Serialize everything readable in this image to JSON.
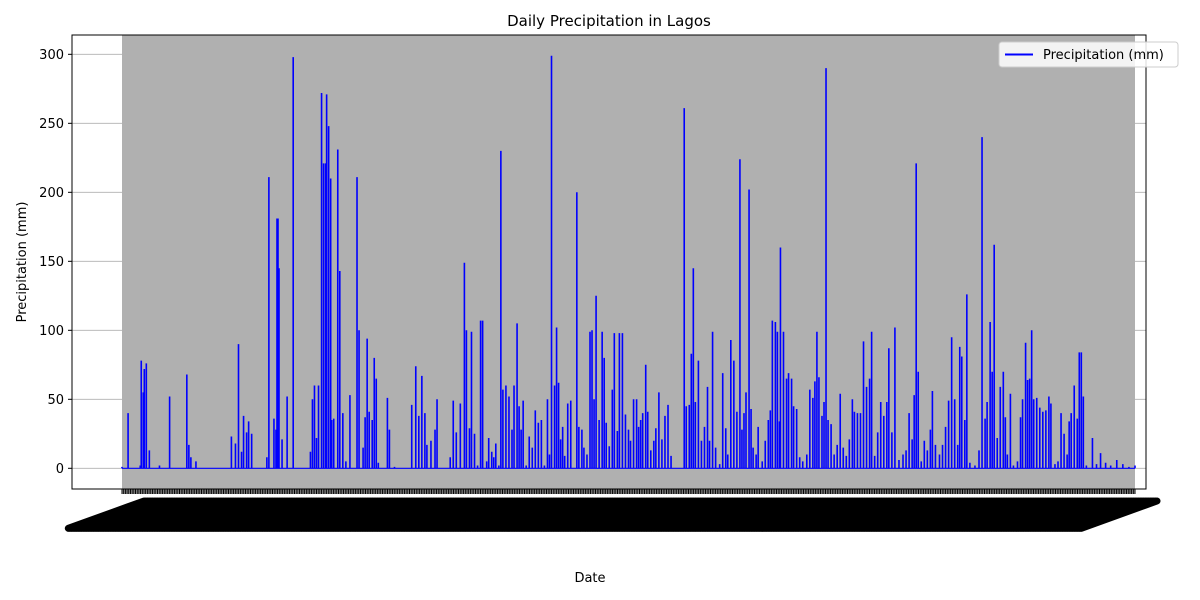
{
  "chart_data": {
    "type": "line",
    "title": "Daily Precipitation in Lagos",
    "xlabel": "Date",
    "ylabel": "Precipitation (mm)",
    "ylim": [
      -15,
      314
    ],
    "yticks": [
      0,
      50,
      100,
      150,
      200,
      250,
      300
    ],
    "grid": "y-only",
    "legend_position": "top-right",
    "x_tick_labels_legible": false,
    "plot_background": "#b0b0b0",
    "series": [
      {
        "name": "Precipitation (mm)",
        "color": "#0000ff",
        "points": [
          [
            0.0,
            1
          ],
          [
            0.006,
            40
          ],
          [
            0.018,
            2
          ],
          [
            0.019,
            78
          ],
          [
            0.021,
            55
          ],
          [
            0.022,
            72
          ],
          [
            0.024,
            76
          ],
          [
            0.027,
            13
          ],
          [
            0.031,
            0
          ],
          [
            0.037,
            2
          ],
          [
            0.047,
            52
          ],
          [
            0.053,
            0
          ],
          [
            0.064,
            40
          ],
          [
            0.064,
            68
          ],
          [
            0.066,
            17
          ],
          [
            0.068,
            8
          ],
          [
            0.071,
            0
          ],
          [
            0.073,
            5
          ],
          [
            0.082,
            0
          ],
          [
            0.108,
            23
          ],
          [
            0.112,
            18
          ],
          [
            0.115,
            90
          ],
          [
            0.118,
            12
          ],
          [
            0.12,
            38
          ],
          [
            0.123,
            26
          ],
          [
            0.125,
            34
          ],
          [
            0.128,
            25
          ],
          [
            0.143,
            8
          ],
          [
            0.145,
            211
          ],
          [
            0.15,
            36
          ],
          [
            0.152,
            28
          ],
          [
            0.153,
            181
          ],
          [
            0.154,
            181
          ],
          [
            0.155,
            145
          ],
          [
            0.158,
            21
          ],
          [
            0.163,
            52
          ],
          [
            0.167,
            0
          ],
          [
            0.169,
            298
          ],
          [
            0.171,
            0
          ],
          [
            0.177,
            0
          ],
          [
            0.186,
            12
          ],
          [
            0.188,
            50
          ],
          [
            0.19,
            60
          ],
          [
            0.192,
            22
          ],
          [
            0.194,
            60
          ],
          [
            0.197,
            272
          ],
          [
            0.199,
            221
          ],
          [
            0.201,
            221
          ],
          [
            0.202,
            271
          ],
          [
            0.204,
            248
          ],
          [
            0.206,
            210
          ],
          [
            0.207,
            35
          ],
          [
            0.209,
            36
          ],
          [
            0.213,
            231
          ],
          [
            0.215,
            143
          ],
          [
            0.218,
            40
          ],
          [
            0.221,
            5
          ],
          [
            0.225,
            53
          ],
          [
            0.23,
            0
          ],
          [
            0.232,
            211
          ],
          [
            0.234,
            100
          ],
          [
            0.238,
            15
          ],
          [
            0.24,
            37
          ],
          [
            0.242,
            94
          ],
          [
            0.244,
            41
          ],
          [
            0.247,
            35
          ],
          [
            0.249,
            80
          ],
          [
            0.251,
            65
          ],
          [
            0.253,
            4
          ],
          [
            0.26,
            0
          ],
          [
            0.262,
            51
          ],
          [
            0.264,
            28
          ],
          [
            0.269,
            1
          ],
          [
            0.276,
            0
          ],
          [
            0.286,
            46
          ],
          [
            0.29,
            74
          ],
          [
            0.293,
            38
          ],
          [
            0.296,
            67
          ],
          [
            0.299,
            40
          ],
          [
            0.301,
            17
          ],
          [
            0.305,
            20
          ],
          [
            0.309,
            28
          ],
          [
            0.311,
            50
          ],
          [
            0.316,
            0
          ],
          [
            0.324,
            8
          ],
          [
            0.327,
            49
          ],
          [
            0.33,
            26
          ],
          [
            0.334,
            47
          ],
          [
            0.338,
            149
          ],
          [
            0.34,
            100
          ],
          [
            0.343,
            29
          ],
          [
            0.345,
            99
          ],
          [
            0.348,
            25
          ],
          [
            0.351,
            2
          ],
          [
            0.354,
            107
          ],
          [
            0.356,
            107
          ],
          [
            0.36,
            5
          ],
          [
            0.362,
            22
          ],
          [
            0.365,
            12
          ],
          [
            0.367,
            8
          ],
          [
            0.369,
            18
          ],
          [
            0.372,
            2
          ],
          [
            0.374,
            230
          ],
          [
            0.376,
            57
          ],
          [
            0.379,
            60
          ],
          [
            0.382,
            52
          ],
          [
            0.385,
            28
          ],
          [
            0.387,
            60
          ],
          [
            0.39,
            105
          ],
          [
            0.392,
            45
          ],
          [
            0.394,
            28
          ],
          [
            0.396,
            49
          ],
          [
            0.399,
            2
          ],
          [
            0.402,
            23
          ],
          [
            0.405,
            15
          ],
          [
            0.408,
            42
          ],
          [
            0.411,
            33
          ],
          [
            0.414,
            35
          ],
          [
            0.417,
            2
          ],
          [
            0.42,
            50
          ],
          [
            0.422,
            10
          ],
          [
            0.424,
            299
          ],
          [
            0.427,
            60
          ],
          [
            0.429,
            102
          ],
          [
            0.431,
            62
          ],
          [
            0.433,
            21
          ],
          [
            0.435,
            30
          ],
          [
            0.437,
            9
          ],
          [
            0.44,
            47
          ],
          [
            0.443,
            49
          ],
          [
            0.446,
            0
          ],
          [
            0.449,
            200
          ],
          [
            0.451,
            30
          ],
          [
            0.454,
            28
          ],
          [
            0.456,
            15
          ],
          [
            0.459,
            10
          ],
          [
            0.462,
            99
          ],
          [
            0.464,
            100
          ],
          [
            0.466,
            50
          ],
          [
            0.468,
            125
          ],
          [
            0.471,
            35
          ],
          [
            0.474,
            99
          ],
          [
            0.476,
            80
          ],
          [
            0.478,
            33
          ],
          [
            0.481,
            16
          ],
          [
            0.484,
            57
          ],
          [
            0.486,
            98
          ],
          [
            0.489,
            27
          ],
          [
            0.491,
            98
          ],
          [
            0.494,
            98
          ],
          [
            0.497,
            39
          ],
          [
            0.5,
            28
          ],
          [
            0.502,
            20
          ],
          [
            0.505,
            50
          ],
          [
            0.508,
            50
          ],
          [
            0.51,
            30
          ],
          [
            0.512,
            35
          ],
          [
            0.514,
            40
          ],
          [
            0.517,
            75
          ],
          [
            0.519,
            41
          ],
          [
            0.522,
            13
          ],
          [
            0.525,
            20
          ],
          [
            0.527,
            29
          ],
          [
            0.53,
            55
          ],
          [
            0.533,
            21
          ],
          [
            0.536,
            38
          ],
          [
            0.539,
            46
          ],
          [
            0.542,
            9
          ],
          [
            0.555,
            261
          ],
          [
            0.557,
            45
          ],
          [
            0.56,
            46
          ],
          [
            0.562,
            83
          ],
          [
            0.564,
            145
          ],
          [
            0.566,
            48
          ],
          [
            0.569,
            78
          ],
          [
            0.572,
            20
          ],
          [
            0.575,
            30
          ],
          [
            0.578,
            59
          ],
          [
            0.58,
            20
          ],
          [
            0.583,
            99
          ],
          [
            0.586,
            15
          ],
          [
            0.59,
            3
          ],
          [
            0.593,
            69
          ],
          [
            0.596,
            29
          ],
          [
            0.598,
            10
          ],
          [
            0.601,
            93
          ],
          [
            0.604,
            78
          ],
          [
            0.607,
            41
          ],
          [
            0.61,
            224
          ],
          [
            0.612,
            28
          ],
          [
            0.614,
            40
          ],
          [
            0.616,
            55
          ],
          [
            0.619,
            202
          ],
          [
            0.621,
            43
          ],
          [
            0.623,
            15
          ],
          [
            0.626,
            10
          ],
          [
            0.628,
            30
          ],
          [
            0.632,
            5
          ],
          [
            0.635,
            20
          ],
          [
            0.638,
            35
          ],
          [
            0.64,
            42
          ],
          [
            0.642,
            107
          ],
          [
            0.645,
            106
          ],
          [
            0.647,
            99
          ],
          [
            0.649,
            34
          ],
          [
            0.65,
            160
          ],
          [
            0.653,
            99
          ],
          [
            0.656,
            65
          ],
          [
            0.658,
            69
          ],
          [
            0.661,
            65
          ],
          [
            0.663,
            45
          ],
          [
            0.666,
            43
          ],
          [
            0.669,
            8
          ],
          [
            0.672,
            5
          ],
          [
            0.676,
            10
          ],
          [
            0.679,
            57
          ],
          [
            0.682,
            51
          ],
          [
            0.684,
            63
          ],
          [
            0.686,
            99
          ],
          [
            0.688,
            66
          ],
          [
            0.691,
            38
          ],
          [
            0.693,
            48
          ],
          [
            0.695,
            290
          ],
          [
            0.697,
            35
          ],
          [
            0.7,
            32
          ],
          [
            0.703,
            10
          ],
          [
            0.706,
            17
          ],
          [
            0.709,
            54
          ],
          [
            0.712,
            15
          ],
          [
            0.715,
            9
          ],
          [
            0.718,
            21
          ],
          [
            0.721,
            50
          ],
          [
            0.723,
            41
          ],
          [
            0.726,
            40
          ],
          [
            0.729,
            40
          ],
          [
            0.732,
            92
          ],
          [
            0.735,
            59
          ],
          [
            0.738,
            65
          ],
          [
            0.74,
            99
          ],
          [
            0.743,
            9
          ],
          [
            0.746,
            26
          ],
          [
            0.749,
            48
          ],
          [
            0.752,
            38
          ],
          [
            0.755,
            48
          ],
          [
            0.757,
            87
          ],
          [
            0.76,
            26
          ],
          [
            0.763,
            102
          ],
          [
            0.767,
            6
          ],
          [
            0.771,
            10
          ],
          [
            0.774,
            13
          ],
          [
            0.777,
            40
          ],
          [
            0.78,
            21
          ],
          [
            0.782,
            53
          ],
          [
            0.784,
            221
          ],
          [
            0.786,
            70
          ],
          [
            0.789,
            5
          ],
          [
            0.792,
            20
          ],
          [
            0.795,
            13
          ],
          [
            0.798,
            28
          ],
          [
            0.8,
            56
          ],
          [
            0.803,
            17
          ],
          [
            0.807,
            10
          ],
          [
            0.81,
            17
          ],
          [
            0.813,
            30
          ],
          [
            0.816,
            49
          ],
          [
            0.819,
            95
          ],
          [
            0.822,
            50
          ],
          [
            0.825,
            17
          ],
          [
            0.827,
            88
          ],
          [
            0.829,
            81
          ],
          [
            0.832,
            35
          ],
          [
            0.834,
            126
          ],
          [
            0.837,
            4
          ],
          [
            0.842,
            2
          ],
          [
            0.846,
            13
          ],
          [
            0.849,
            240
          ],
          [
            0.852,
            36
          ],
          [
            0.854,
            48
          ],
          [
            0.857,
            106
          ],
          [
            0.859,
            70
          ],
          [
            0.861,
            162
          ],
          [
            0.864,
            22
          ],
          [
            0.867,
            59
          ],
          [
            0.87,
            70
          ],
          [
            0.872,
            37
          ],
          [
            0.874,
            10
          ],
          [
            0.877,
            54
          ],
          [
            0.88,
            2
          ],
          [
            0.884,
            5
          ],
          [
            0.887,
            37
          ],
          [
            0.889,
            50
          ],
          [
            0.892,
            91
          ],
          [
            0.894,
            64
          ],
          [
            0.896,
            65
          ],
          [
            0.898,
            100
          ],
          [
            0.9,
            50
          ],
          [
            0.903,
            51
          ],
          [
            0.906,
            44
          ],
          [
            0.909,
            41
          ],
          [
            0.912,
            42
          ],
          [
            0.915,
            52
          ],
          [
            0.917,
            47
          ],
          [
            0.921,
            3
          ],
          [
            0.924,
            5
          ],
          [
            0.927,
            40
          ],
          [
            0.93,
            25
          ],
          [
            0.933,
            10
          ],
          [
            0.935,
            34
          ],
          [
            0.937,
            40
          ],
          [
            0.94,
            60
          ],
          [
            0.943,
            36
          ],
          [
            0.945,
            84
          ],
          [
            0.947,
            84
          ],
          [
            0.949,
            52
          ],
          [
            0.952,
            2
          ],
          [
            0.958,
            22
          ],
          [
            0.962,
            3
          ],
          [
            0.966,
            11
          ],
          [
            0.971,
            4
          ],
          [
            0.976,
            2
          ],
          [
            0.982,
            6
          ],
          [
            0.988,
            3
          ],
          [
            0.994,
            1
          ],
          [
            1.0,
            2
          ]
        ]
      }
    ]
  }
}
